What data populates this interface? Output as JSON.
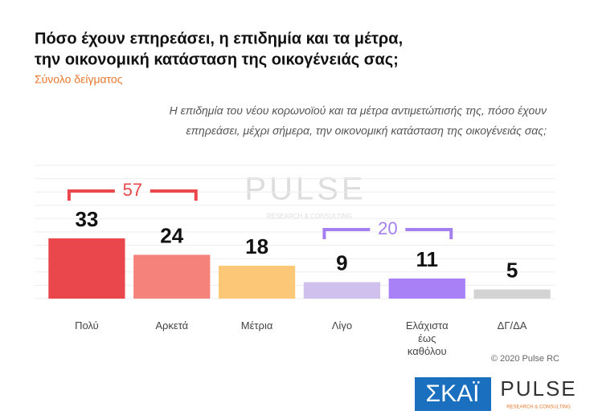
{
  "chart_data": {
    "type": "bar",
    "title": [
      "Πόσο έχουν επηρεάσει, η επιδημία και τα μέτρα,",
      "την οικονομική κατάσταση της οικογένειάς σας;"
    ],
    "subtitle": "Σύνολο δείγματος",
    "question": [
      "Η επιδημία του νέου κορωνοϊού και τα μέτρα αντιμετώπισής της, πόσο έχουν",
      "επηρεάσει, μέχρι σήμερα, την οικονομική κατάσταση της οικογένειάς σας;"
    ],
    "categories": [
      "Πολύ",
      "Αρκετά",
      "Μέτρια",
      "Λίγο",
      "Ελάχιστα έως καθόλου",
      "ΔΓ/ΔΑ"
    ],
    "values": [
      33,
      24,
      18,
      9,
      11,
      5
    ],
    "colors": [
      "#e9474b",
      "#f5837c",
      "#fcc877",
      "#cfc0ee",
      "#a781f5",
      "#d3d3d3"
    ],
    "ylim": [
      0,
      73
    ],
    "grid": true,
    "brackets": [
      {
        "value": 57,
        "color": "#e9474b"
      },
      {
        "value": 20,
        "color": "#a37ff0"
      }
    ],
    "watermark": {
      "name": "PULSE",
      "tagline": "RESEARCH & CONSULTING"
    },
    "source": "© 2020 Pulse RC",
    "logos": {
      "broadcaster": "ΣΚΑΪ",
      "pollster": "PULSE",
      "tagline": "RESEARCH & CONSULTING"
    }
  }
}
